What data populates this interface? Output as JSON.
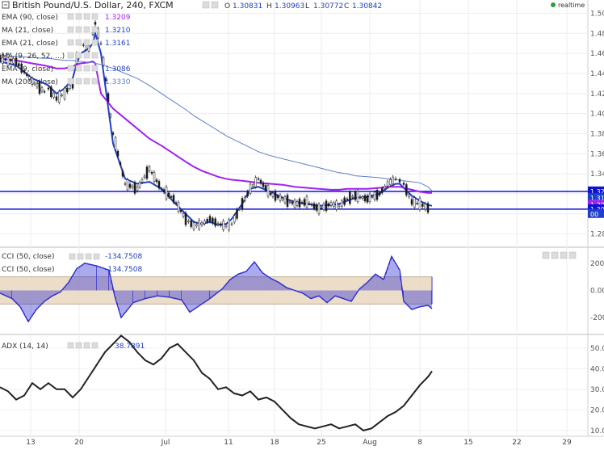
{
  "header": {
    "symbol": "British Pound/U.S. Dollar, 240, FXCM",
    "ohlc": {
      "o_label": "O",
      "o": "1.30831",
      "h_label": "H",
      "h": "1.30963",
      "l_label": "L",
      "l": "1.30772",
      "c_label": "C",
      "c": "1.30842"
    },
    "realtime": "realtime",
    "status_color": "#2e9e46"
  },
  "indicators": [
    {
      "name": "EMA (90, close)",
      "value": "1.3209",
      "color": "#a020f0"
    },
    {
      "name": "MA (21, close)",
      "value": "1.3210",
      "color": "#1f3fc8"
    },
    {
      "name": "EMA (21, close)",
      "value": "1.3161",
      "color": "#1f3fc8"
    },
    {
      "name": "MA (9, 26, 52, ...)",
      "value": "",
      "color": "#7788aa"
    },
    {
      "name": "EMA (9, close)",
      "value": "1.3086",
      "color": "#1f3fc8"
    },
    {
      "name": "MA (200, close)",
      "value": "1.3330",
      "color": "#5b7ec9"
    }
  ],
  "cci_labels": [
    {
      "name": "CCI (50, close)",
      "value": "-134.7508"
    },
    {
      "name": "CCI (50, close)",
      "value": "-134.7508"
    }
  ],
  "adx_label": {
    "name": "ADX (14, 14)",
    "value": "38.7891"
  },
  "colors": {
    "ma200": "#5b7ec9",
    "ema90": "#a020f0",
    "ema21": "#1f3fc8",
    "hline": "#0b12d6",
    "band": "#e9d7c0",
    "adx": "#222222",
    "cci": "#2a2ad0"
  },
  "chart_data": [
    {
      "type": "line",
      "panel": "price",
      "title": "British Pound/U.S. Dollar, 240, FXCM",
      "x_tick_labels": [
        "13",
        "20",
        "Jul",
        "11",
        "18",
        "25",
        "Aug",
        "8",
        "15",
        "22",
        "29"
      ],
      "y_ticks": [
        "1.50",
        "1.48",
        "1.46",
        "1.44",
        "1.42",
        "1.40",
        "1.38",
        "1.36",
        "1.34",
        "1.32",
        "1.30",
        "1.28"
      ],
      "ylim": [
        1.27,
        1.51
      ],
      "horizontal_levels": [
        1.3225,
        1.3047
      ],
      "right_axis_tags": [
        "1.32",
        "1.31",
        "1.30",
        "1.30",
        "00"
      ],
      "x": [
        0,
        20,
        40,
        55,
        60,
        70,
        80,
        90,
        95,
        100,
        110,
        115,
        118,
        125,
        140,
        155,
        170,
        185,
        200,
        215,
        230,
        240,
        250,
        260,
        270,
        280,
        287,
        300,
        310,
        320,
        335,
        350,
        365,
        380,
        395,
        410,
        420,
        430,
        440,
        455,
        470,
        480,
        490,
        495,
        500,
        510,
        520,
        530,
        535
      ],
      "series": [
        {
          "name": "close",
          "values": [
            1.455,
            1.452,
            1.432,
            1.422,
            1.425,
            1.415,
            1.42,
            1.43,
            1.455,
            1.47,
            1.465,
            1.48,
            1.49,
            1.47,
            1.38,
            1.33,
            1.325,
            1.345,
            1.325,
            1.315,
            1.295,
            1.288,
            1.29,
            1.295,
            1.29,
            1.288,
            1.29,
            1.31,
            1.325,
            1.335,
            1.32,
            1.315,
            1.31,
            1.312,
            1.305,
            1.31,
            1.308,
            1.315,
            1.318,
            1.315,
            1.32,
            1.33,
            1.335,
            1.333,
            1.33,
            1.312,
            1.31,
            1.306,
            1.308
          ]
        },
        {
          "name": "EMA (9, close)",
          "values": [
            1.452,
            1.448,
            1.435,
            1.43,
            1.428,
            1.42,
            1.425,
            1.435,
            1.45,
            1.46,
            1.465,
            1.47,
            1.48,
            1.46,
            1.37,
            1.335,
            1.33,
            1.332,
            1.325,
            1.312,
            1.3,
            1.292,
            1.29,
            1.292,
            1.289,
            1.29,
            1.295,
            1.31,
            1.325,
            1.327,
            1.322,
            1.316,
            1.312,
            1.31,
            1.308,
            1.309,
            1.31,
            1.313,
            1.316,
            1.317,
            1.32,
            1.326,
            1.33,
            1.33,
            1.326,
            1.318,
            1.313,
            1.309,
            1.308
          ]
        },
        {
          "name": "EMA (90, close)",
          "values": [
            1.455,
            1.453,
            1.45,
            1.448,
            1.447,
            1.445,
            1.445,
            1.447,
            1.449,
            1.45,
            1.451,
            1.452,
            1.45,
            1.42,
            1.405,
            1.395,
            1.385,
            1.375,
            1.368,
            1.36,
            1.352,
            1.347,
            1.343,
            1.34,
            1.337,
            1.335,
            1.334,
            1.333,
            1.332,
            1.331,
            1.33,
            1.329,
            1.327,
            1.326,
            1.325,
            1.324,
            1.324,
            1.325,
            1.325,
            1.325,
            1.326,
            1.327,
            1.327,
            1.327,
            1.326,
            1.324,
            1.322,
            1.321,
            1.321
          ]
        },
        {
          "name": "MA (200, close)",
          "values": [
            1.458,
            1.457,
            1.456,
            1.455,
            1.455,
            1.454,
            1.453,
            1.453,
            1.452,
            1.452,
            1.451,
            1.451,
            1.45,
            1.449,
            1.445,
            1.44,
            1.435,
            1.428,
            1.42,
            1.412,
            1.404,
            1.398,
            1.393,
            1.388,
            1.383,
            1.378,
            1.375,
            1.37,
            1.366,
            1.362,
            1.358,
            1.355,
            1.352,
            1.349,
            1.346,
            1.343,
            1.341,
            1.34,
            1.338,
            1.337,
            1.336,
            1.335,
            1.334,
            1.334,
            1.333,
            1.332,
            1.331,
            1.327,
            1.323
          ]
        }
      ]
    },
    {
      "type": "bar",
      "panel": "cci",
      "y_ticks": [
        "200",
        "0.00",
        "-200"
      ],
      "ylim": [
        -300,
        300
      ],
      "band": [
        -100,
        100
      ],
      "x": [
        0,
        15,
        25,
        35,
        45,
        55,
        65,
        75,
        85,
        95,
        105,
        120,
        135,
        142,
        150,
        165,
        180,
        195,
        210,
        225,
        235,
        245,
        260,
        275,
        285,
        295,
        305,
        315,
        325,
        335,
        345,
        355,
        365,
        375,
        385,
        395,
        405,
        415,
        425,
        435,
        445,
        455,
        465,
        475,
        485,
        495,
        500,
        510,
        520,
        530,
        535
      ],
      "values": [
        -20,
        -60,
        -120,
        -230,
        -140,
        -80,
        -40,
        -10,
        60,
        160,
        200,
        180,
        150,
        -40,
        -200,
        -90,
        -60,
        -40,
        -50,
        -70,
        -160,
        -120,
        -60,
        10,
        80,
        120,
        140,
        210,
        130,
        90,
        60,
        20,
        0,
        -20,
        -60,
        -40,
        -90,
        -40,
        -60,
        -80,
        10,
        60,
        120,
        80,
        250,
        150,
        -80,
        -140,
        -120,
        -110,
        -134.75
      ]
    },
    {
      "type": "line",
      "panel": "adx",
      "y_ticks": [
        "50.0",
        "40.0",
        "30.0",
        "20.0",
        "10.0"
      ],
      "ylim": [
        8,
        55
      ],
      "x": [
        0,
        10,
        20,
        30,
        40,
        50,
        60,
        70,
        80,
        90,
        100,
        110,
        120,
        130,
        140,
        150,
        160,
        170,
        180,
        190,
        200,
        210,
        220,
        230,
        240,
        250,
        260,
        270,
        280,
        290,
        300,
        310,
        320,
        330,
        340,
        350,
        360,
        370,
        380,
        390,
        400,
        410,
        420,
        430,
        440,
        450,
        460,
        470,
        480,
        490,
        500,
        510,
        520,
        530,
        535
      ],
      "values": [
        31,
        29,
        25,
        27,
        33,
        30,
        33,
        30,
        30,
        26,
        30,
        36,
        42,
        48,
        52,
        56,
        53,
        48,
        44,
        42,
        45,
        50,
        52,
        48,
        44,
        38,
        35,
        30,
        31,
        28,
        27,
        29,
        25,
        26,
        24,
        20,
        16,
        13,
        12,
        11,
        12,
        13,
        11,
        12,
        13,
        10,
        11,
        14,
        17,
        19,
        22,
        27,
        32,
        36,
        38.79
      ]
    }
  ]
}
